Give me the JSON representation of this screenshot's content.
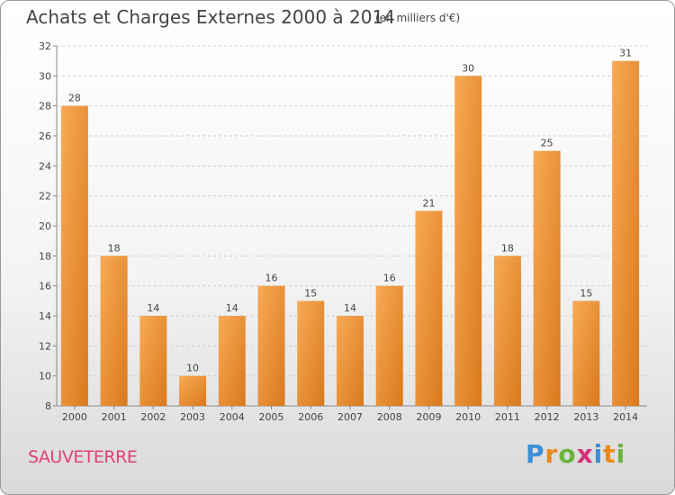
{
  "chart_data": {
    "type": "bar",
    "title": "Achats et Charges Externes 2000 à 2014",
    "subtitle": "(en milliers d'€)",
    "categories": [
      "2000",
      "2001",
      "2002",
      "2003",
      "2004",
      "2005",
      "2006",
      "2007",
      "2008",
      "2009",
      "2010",
      "2011",
      "2012",
      "2013",
      "2014"
    ],
    "values": [
      28,
      18,
      14,
      10,
      14,
      16,
      15,
      14,
      16,
      21,
      30,
      18,
      25,
      15,
      31
    ],
    "ylim": [
      8,
      32
    ],
    "yticks": [
      8,
      10,
      12,
      14,
      16,
      18,
      20,
      22,
      24,
      26,
      28,
      30,
      32
    ],
    "grid": true,
    "bar_color": "#f5a04a",
    "bar_color_dark": "#d87a1e"
  },
  "footer": {
    "town": "SAUVETERRE",
    "logo": "Proxiti"
  }
}
